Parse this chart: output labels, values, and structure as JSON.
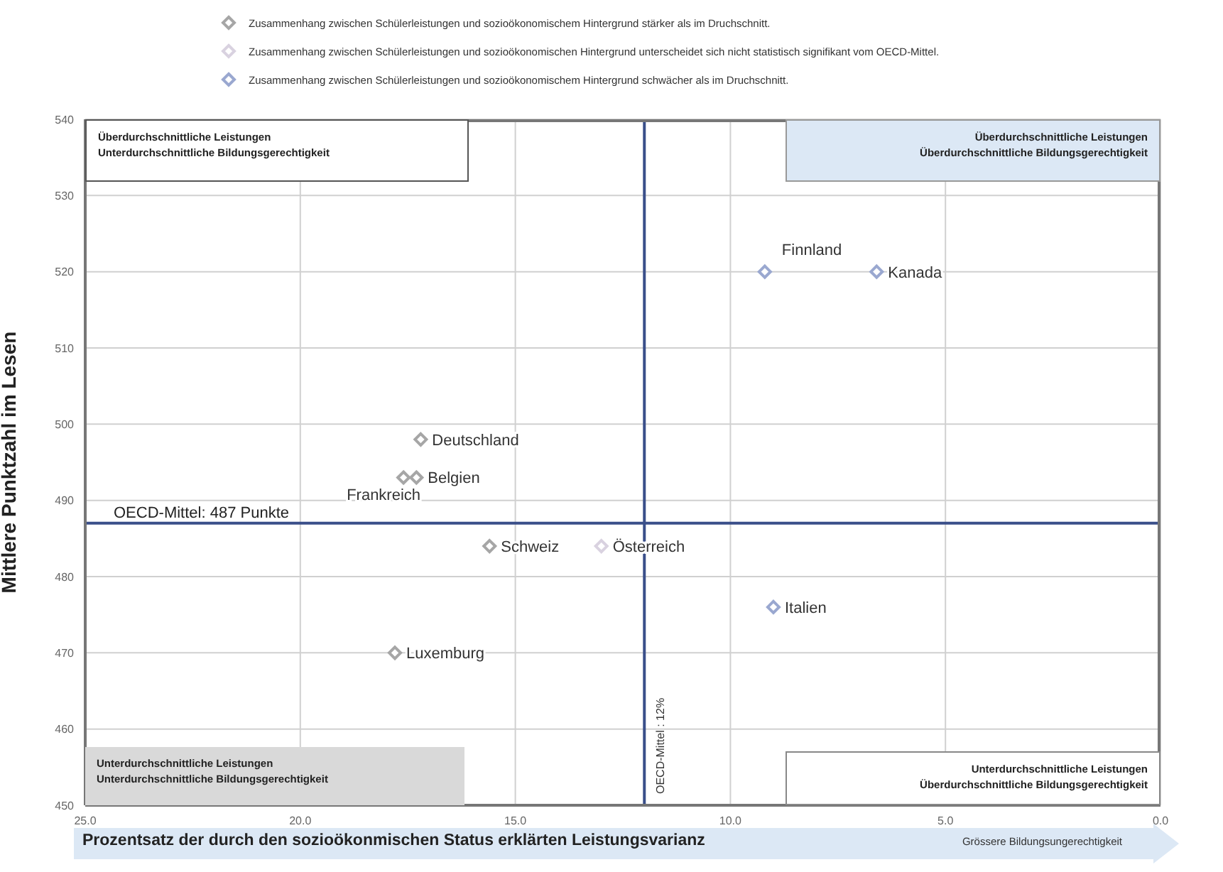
{
  "chart_data": {
    "type": "scatter",
    "ylabel": "Mittlere Punktzahl im Lesen",
    "xlabel": "Prozentsatz der durch den sozioökonmischen Status erklärten Leistungsvarianz",
    "xlim": [
      25,
      0
    ],
    "xticks": [
      {
        "value": 25,
        "label": "25.0"
      },
      {
        "value": 20,
        "label": "20.0"
      },
      {
        "value": 15,
        "label": "15.0"
      },
      {
        "value": 10,
        "label": "10.0"
      },
      {
        "value": 5,
        "label": "5.0"
      },
      {
        "value": 0,
        "label": "0.0"
      }
    ],
    "ylim": [
      450,
      540
    ],
    "yticks": [
      450,
      460,
      470,
      480,
      490,
      500,
      510,
      520,
      530,
      540
    ],
    "grid": true,
    "legend": "top",
    "marker": "diamond",
    "series": [
      {
        "name": "Zusammenhang zwischen Schülerleistungen und sozioökonomischem Hintergrund stärker als im Druchschnitt.",
        "color": "#a6a6a6",
        "x": [
          17.2,
          17.3,
          17.6,
          15.6,
          17.8
        ],
        "values": [
          498,
          493,
          493,
          484,
          470
        ]
      },
      {
        "name": "Zusammenhang zwischen Schülerleistungen und sozioökonomischen Hintergrund unterscheidet sich nicht statistisch signifikant vom OECD-Mittel.",
        "color": "#d9d2e0",
        "x": [
          13.0
        ],
        "values": [
          484
        ]
      },
      {
        "name": "Zusammenhang zwischen Schülerleistungen und sozioökonomischem Hintergrund schwächer als im Druchschnitt.",
        "color": "#9aa8d0",
        "x": [
          9.2,
          6.6,
          9.0
        ],
        "values": [
          520,
          520,
          476
        ]
      }
    ],
    "ref_lines": [
      {
        "axis": "y",
        "value": 487,
        "label": "OECD-Mittel: 487 Punkte",
        "color": "#3a4f8a"
      },
      {
        "axis": "x",
        "value": 12,
        "label": "OECD-Mittel : 12%",
        "color": "#3a4f8a"
      }
    ],
    "annotations": [
      {
        "text": "Deutschland",
        "x": 17.2,
        "y": 498
      },
      {
        "text": "Belgien",
        "x": 17.3,
        "y": 493
      },
      {
        "text": "Frankreich",
        "x": 17.6,
        "y": 493
      },
      {
        "text": "Schweiz",
        "x": 15.6,
        "y": 484
      },
      {
        "text": "Luxemburg",
        "x": 17.8,
        "y": 470
      },
      {
        "text": "Österreich",
        "x": 13.0,
        "y": 484
      },
      {
        "text": "Finnland",
        "x": 9.2,
        "y": 520
      },
      {
        "text": "Kanada",
        "x": 6.6,
        "y": 520
      },
      {
        "text": "Italien",
        "x": 9.0,
        "y": 476
      },
      "Überdurchschnittliche Leistungen",
      "Unterdurchschnittliche Bildungsgerechtigkeit",
      "Überdurchschnittliche Leistungen",
      "Überdurchschnittliche Bildungsgerechtigkeit",
      "Unterdurchschnittliche Leistungen",
      "Unterdurchschnittliche Bildungsgerechtigkeit",
      "Unterdurchschnittliche Leistungen",
      "Überdurchschnittliche Bildungsgerechtigkeit",
      "Grössere Bildungsungerechtigkeit"
    ]
  }
}
